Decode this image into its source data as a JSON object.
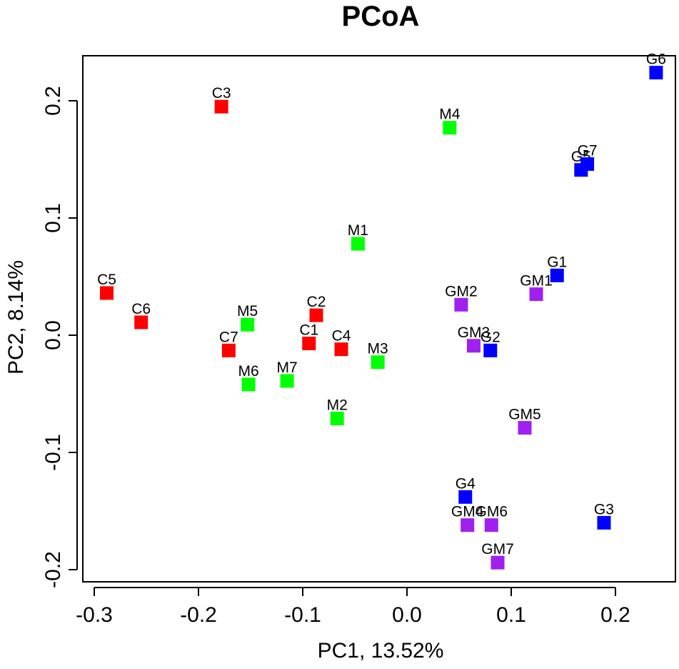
{
  "chart_data": {
    "type": "scatter",
    "title": "PCoA",
    "xlabel": "PC1, 13.52%",
    "ylabel": "PC2, 8.14%",
    "xlim": [
      -0.3,
      0.25
    ],
    "ylim": [
      -0.2,
      0.23
    ],
    "xticks": [
      -0.3,
      -0.2,
      -0.1,
      0.0,
      0.1,
      0.2
    ],
    "xtick_labels": [
      "-0.3",
      "-0.2",
      "-0.1",
      "0.0",
      "0.1",
      "0.2"
    ],
    "yticks": [
      -0.2,
      -0.1,
      0.0,
      0.1,
      0.2
    ],
    "ytick_labels": [
      "-0.2",
      "-0.1",
      "0.0",
      "0.1",
      "0.2"
    ],
    "marker": "square",
    "grid": false,
    "legend": "none",
    "series": [
      {
        "name": "C",
        "color": "#ff0000",
        "points": [
          {
            "label": "C1",
            "x": -0.094,
            "y": -0.007
          },
          {
            "label": "C2",
            "x": -0.087,
            "y": 0.017
          },
          {
            "label": "C3",
            "x": -0.178,
            "y": 0.195
          },
          {
            "label": "C4",
            "x": -0.063,
            "y": -0.012
          },
          {
            "label": "C5",
            "x": -0.288,
            "y": 0.036
          },
          {
            "label": "C6",
            "x": -0.255,
            "y": 0.011
          },
          {
            "label": "C7",
            "x": -0.171,
            "y": -0.013
          }
        ]
      },
      {
        "name": "M",
        "color": "#00ff00",
        "points": [
          {
            "label": "M1",
            "x": -0.047,
            "y": 0.078
          },
          {
            "label": "M2",
            "x": -0.067,
            "y": -0.071
          },
          {
            "label": "M3",
            "x": -0.028,
            "y": -0.023
          },
          {
            "label": "M4",
            "x": 0.041,
            "y": 0.177
          },
          {
            "label": "M5",
            "x": -0.153,
            "y": 0.009
          },
          {
            "label": "M6",
            "x": -0.152,
            "y": -0.042
          },
          {
            "label": "M7",
            "x": -0.115,
            "y": -0.039
          }
        ]
      },
      {
        "name": "G",
        "color": "#0000ff",
        "points": [
          {
            "label": "G1",
            "x": 0.144,
            "y": 0.051
          },
          {
            "label": "G2",
            "x": 0.08,
            "y": -0.013
          },
          {
            "label": "G3",
            "x": 0.189,
            "y": -0.16
          },
          {
            "label": "G4",
            "x": 0.056,
            "y": -0.138
          },
          {
            "label": "G5",
            "x": 0.167,
            "y": 0.141
          },
          {
            "label": "G6",
            "x": 0.239,
            "y": 0.224
          },
          {
            "label": "G7",
            "x": 0.173,
            "y": 0.146
          }
        ]
      },
      {
        "name": "GM",
        "color": "#a020f0",
        "points": [
          {
            "label": "GM1",
            "x": 0.124,
            "y": 0.035
          },
          {
            "label": "GM2",
            "x": 0.052,
            "y": 0.026
          },
          {
            "label": "GM3",
            "x": 0.064,
            "y": -0.009
          },
          {
            "label": "GM4",
            "x": 0.058,
            "y": -0.162
          },
          {
            "label": "GM5",
            "x": 0.113,
            "y": -0.079
          },
          {
            "label": "GM6",
            "x": 0.081,
            "y": -0.162
          },
          {
            "label": "GM7",
            "x": 0.087,
            "y": -0.194
          }
        ]
      }
    ]
  }
}
